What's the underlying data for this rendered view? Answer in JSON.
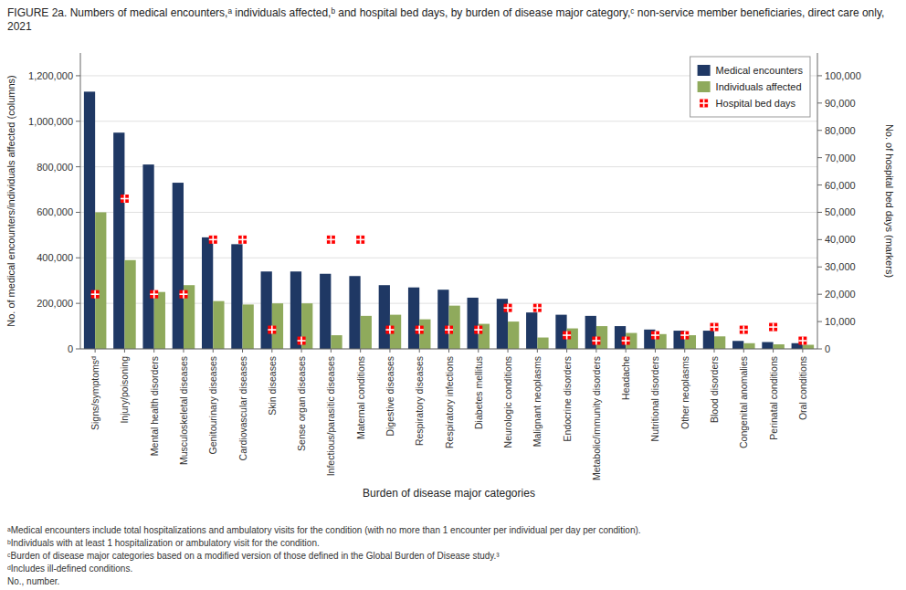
{
  "chart_data": {
    "type": "bar",
    "title": "FIGURE 2a. Numbers of medical encounters,ᵃ individuals affected,ᵇ and hospital bed days, by burden of disease major category,ᶜ non-service member beneficiaries, direct care only, 2021",
    "xlabel": "Burden of disease major categories",
    "ylabel": "No. of medical encounters/individuals affected (columns)",
    "y2label": "No. of hospital bed days (markers)",
    "categories": [
      "Signs/symptomsᵈ",
      "Injury/poisoning",
      "Mental health disorders",
      "Musculoskeletal diseases",
      "Genitourinary diseases",
      "Cardiovascular diseases",
      "Skin diseases",
      "Sense organ diseases",
      "Infectious/parasitic diseases",
      "Maternal conditions",
      "Digestive diseases",
      "Respiratory diseases",
      "Respiratory infections",
      "Diabetes mellitus",
      "Neurologic conditions",
      "Malignant neoplasms",
      "Endocrine disorders",
      "Metabolic/immunity disorders",
      "Headache",
      "Nutritional disorders",
      "Other neoplasms",
      "Blood disorders",
      "Congenital anomalies",
      "Perinatal conditions",
      "Oral conditions"
    ],
    "series": [
      {
        "name": "Medical encounters",
        "color": "#1f3864",
        "values": [
          1130000,
          950000,
          810000,
          730000,
          490000,
          460000,
          340000,
          340000,
          330000,
          320000,
          280000,
          270000,
          260000,
          225000,
          220000,
          160000,
          150000,
          145000,
          100000,
          85000,
          80000,
          80000,
          35000,
          30000,
          25000
        ]
      },
      {
        "name": "Individuals affected",
        "color": "#8faa5c",
        "values": [
          600000,
          390000,
          250000,
          280000,
          210000,
          195000,
          200000,
          200000,
          60000,
          145000,
          150000,
          130000,
          190000,
          110000,
          120000,
          50000,
          90000,
          100000,
          70000,
          65000,
          60000,
          55000,
          25000,
          20000,
          18000
        ]
      },
      {
        "name": "Hospital bed days",
        "color": "#ff0000",
        "type": "scatter",
        "marker": "square",
        "axis": "y2",
        "values": [
          20000,
          55000,
          20000,
          20000,
          40000,
          40000,
          7000,
          3000,
          40000,
          40000,
          7000,
          7000,
          7000,
          7000,
          15000,
          15000,
          5000,
          3000,
          3000,
          5000,
          5000,
          8000,
          7000,
          8000,
          3000
        ]
      }
    ],
    "ylim": [
      0,
      1300000
    ],
    "yticks": [
      0,
      {
        "value": 200000,
        "label": "200,000"
      },
      {
        "value": 400000,
        "label": "400,000"
      },
      {
        "value": 600000,
        "label": "600,000"
      },
      {
        "value": 800000,
        "label": "800,000"
      },
      {
        "value": 1000000,
        "label": "1,000,000"
      },
      {
        "value": 1200000,
        "label": "1,200,000"
      }
    ],
    "y2lim": [
      0,
      108333
    ],
    "y2ticks": [
      0,
      {
        "value": 10000,
        "label": "10,000"
      },
      {
        "value": 20000,
        "label": "20,000"
      },
      {
        "value": 30000,
        "label": "30,000"
      },
      {
        "value": 40000,
        "label": "40,000"
      },
      {
        "value": 50000,
        "label": "50,000"
      },
      {
        "value": 60000,
        "label": "60,000"
      },
      {
        "value": 70000,
        "label": "70,000"
      },
      {
        "value": 80000,
        "label": "80,000"
      },
      {
        "value": 90000,
        "label": "90,000"
      },
      {
        "value": 100000,
        "label": "100,000"
      }
    ],
    "grid": true,
    "legend": "upper right",
    "annotations": [
      "ᵃMedical encounters include total hospitalizations and ambulatory visits for the condition (with no more than 1 encounter per individual per day per condition).",
      "ᵇIndividuals with at least 1 hospitalization or ambulatory visit for the condition.",
      "ᶜBurden of disease major categories based on a modified version of those defined in the Global Burden of Disease study.³",
      "ᵈIncludes ill-defined conditions.",
      "No., number."
    ]
  }
}
